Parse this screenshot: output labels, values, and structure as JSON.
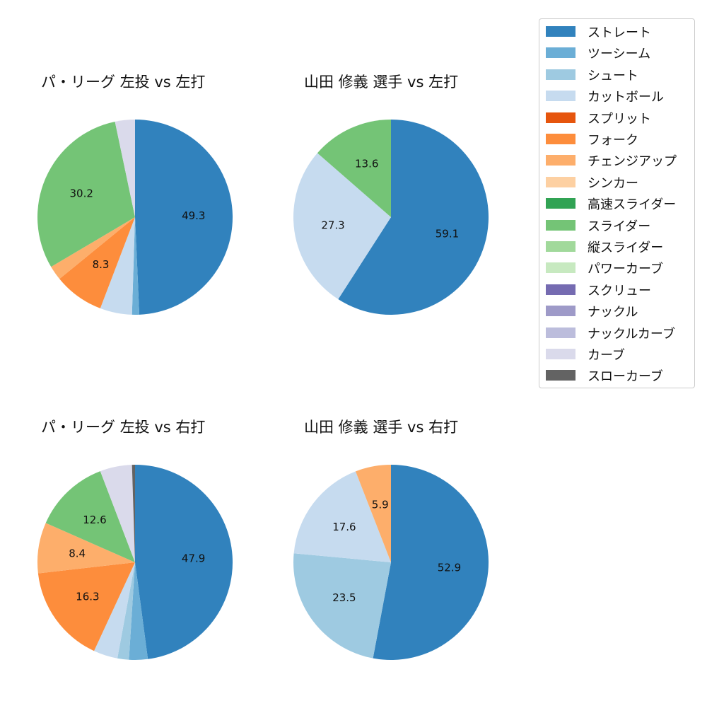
{
  "colors": {
    "ストレート": "#3182bd",
    "ツーシーム": "#6baed6",
    "シュート": "#9ecae1",
    "カットボール": "#c6dbef",
    "スプリット": "#e6550d",
    "フォーク": "#fd8d3c",
    "チェンジアップ": "#fdae6b",
    "シンカー": "#fdd0a2",
    "高速スライダー": "#31a354",
    "スライダー": "#74c476",
    "縦スライダー": "#a1d99b",
    "パワーカーブ": "#c7e9c0",
    "スクリュー": "#756bb1",
    "ナックル": "#9e9ac8",
    "ナックルカーブ": "#bcbddc",
    "カーブ": "#dadaeb",
    "スローカーブ": "#636363"
  },
  "legend": {
    "items": [
      {
        "label": "ストレート",
        "color": "#3182bd"
      },
      {
        "label": "ツーシーム",
        "color": "#6baed6"
      },
      {
        "label": "シュート",
        "color": "#9ecae1"
      },
      {
        "label": "カットボール",
        "color": "#c6dbef"
      },
      {
        "label": "スプリット",
        "color": "#e6550d"
      },
      {
        "label": "フォーク",
        "color": "#fd8d3c"
      },
      {
        "label": "チェンジアップ",
        "color": "#fdae6b"
      },
      {
        "label": "シンカー",
        "color": "#fdd0a2"
      },
      {
        "label": "高速スライダー",
        "color": "#31a354"
      },
      {
        "label": "スライダー",
        "color": "#74c476"
      },
      {
        "label": "縦スライダー",
        "color": "#a1d99b"
      },
      {
        "label": "パワーカーブ",
        "color": "#c7e9c0"
      },
      {
        "label": "スクリュー",
        "color": "#756bb1"
      },
      {
        "label": "ナックル",
        "color": "#9e9ac8"
      },
      {
        "label": "ナックルカーブ",
        "color": "#bcbddc"
      },
      {
        "label": "カーブ",
        "color": "#dadaeb"
      },
      {
        "label": "スローカーブ",
        "color": "#636363"
      }
    ]
  },
  "chart_data": [
    {
      "type": "pie",
      "title": "パ・リーグ 左投 vs 左打",
      "categories": [
        "ストレート",
        "ツーシーム",
        "カットボール",
        "フォーク",
        "チェンジアップ",
        "スライダー",
        "カーブ"
      ],
      "values": [
        49.3,
        1.2,
        5.3,
        8.3,
        2.4,
        30.2,
        3.3
      ],
      "labels_shown": [
        "49.3",
        "",
        "",
        "8.3",
        "",
        "30.2",
        ""
      ],
      "start_angle": 90,
      "direction": "clockwise",
      "legend_position": "right (shared)"
    },
    {
      "type": "pie",
      "title": "山田 修義 選手 vs 左打",
      "categories": [
        "ストレート",
        "カットボール",
        "スライダー"
      ],
      "values": [
        59.1,
        27.3,
        13.6
      ],
      "labels_shown": [
        "59.1",
        "27.3",
        "13.6"
      ],
      "start_angle": 90,
      "direction": "clockwise",
      "legend_position": "right (shared)"
    },
    {
      "type": "pie",
      "title": "パ・リーグ 左投 vs 右打",
      "categories": [
        "ストレート",
        "ツーシーム",
        "シュート",
        "カットボール",
        "フォーク",
        "チェンジアップ",
        "スライダー",
        "カーブ",
        "スローカーブ"
      ],
      "values": [
        47.9,
        3.1,
        1.9,
        4.0,
        16.3,
        8.4,
        12.6,
        5.3,
        0.5
      ],
      "labels_shown": [
        "47.9",
        "",
        "",
        "",
        "16.3",
        "8.4",
        "12.6",
        "",
        ""
      ],
      "start_angle": 90,
      "direction": "clockwise",
      "legend_position": "right (shared)"
    },
    {
      "type": "pie",
      "title": "山田 修義 選手 vs 右打",
      "categories": [
        "ストレート",
        "シュート",
        "カットボール",
        "チェンジアップ"
      ],
      "values": [
        52.9,
        23.5,
        17.6,
        5.9
      ],
      "labels_shown": [
        "52.9",
        "23.5",
        "17.6",
        "5.9"
      ],
      "start_angle": 90,
      "direction": "clockwise",
      "legend_position": "right (shared)"
    }
  ]
}
